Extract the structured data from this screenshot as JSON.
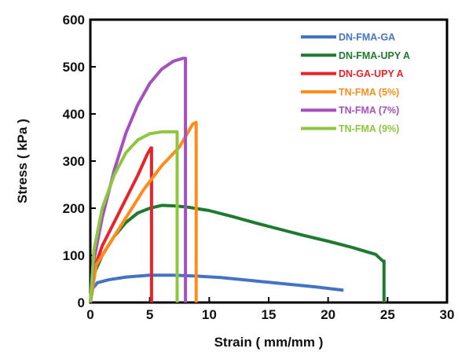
{
  "chart_data": {
    "type": "line",
    "title": "",
    "xlabel": "Strain ( mm/mm )",
    "ylabel": "Stress ( kPa )",
    "xlim": [
      0,
      30
    ],
    "ylim": [
      0,
      600
    ],
    "xticks": [
      0,
      5,
      10,
      15,
      20,
      25,
      30
    ],
    "yticks": [
      0,
      100,
      200,
      300,
      400,
      500,
      600
    ],
    "legend_position": "top-right",
    "grid": false,
    "series": [
      {
        "name": "DN-FMA-GA",
        "color": "#4472c4",
        "points": [
          [
            0,
            0
          ],
          [
            0.2,
            30
          ],
          [
            0.6,
            42
          ],
          [
            1.5,
            48
          ],
          [
            3,
            54
          ],
          [
            5,
            58
          ],
          [
            7,
            58
          ],
          [
            9,
            56
          ],
          [
            11,
            53
          ],
          [
            13,
            48
          ],
          [
            15,
            43
          ],
          [
            17,
            38
          ],
          [
            19,
            33
          ],
          [
            21.3,
            26
          ]
        ]
      },
      {
        "name": "DN-FMA-UPY A",
        "color": "#1e7b2e",
        "points": [
          [
            0,
            0
          ],
          [
            0.3,
            60
          ],
          [
            1,
            100
          ],
          [
            2,
            140
          ],
          [
            3,
            170
          ],
          [
            4,
            190
          ],
          [
            5,
            200
          ],
          [
            6,
            206
          ],
          [
            7,
            205
          ],
          [
            8,
            203
          ],
          [
            10,
            195
          ],
          [
            12,
            182
          ],
          [
            14,
            168
          ],
          [
            16,
            155
          ],
          [
            18,
            142
          ],
          [
            20,
            130
          ],
          [
            22,
            117
          ],
          [
            24,
            102
          ],
          [
            24.6,
            88
          ],
          [
            24.7,
            88
          ],
          [
            24.7,
            0
          ]
        ]
      },
      {
        "name": "DN-GA-UPY A",
        "color": "#e8232a",
        "points": [
          [
            0,
            0
          ],
          [
            0.3,
            70
          ],
          [
            1,
            120
          ],
          [
            2,
            170
          ],
          [
            3,
            220
          ],
          [
            4,
            270
          ],
          [
            4.8,
            315
          ],
          [
            5.1,
            328
          ],
          [
            5.15,
            328
          ],
          [
            5.15,
            0
          ]
        ]
      },
      {
        "name": "TN-FMA (5%)",
        "color": "#ff8c1a",
        "points": [
          [
            0,
            0
          ],
          [
            0.5,
            80
          ],
          [
            1.5,
            120
          ],
          [
            3,
            180
          ],
          [
            4.5,
            240
          ],
          [
            6,
            290
          ],
          [
            7.5,
            330
          ],
          [
            8.6,
            378
          ],
          [
            8.9,
            382
          ],
          [
            8.9,
            0
          ]
        ]
      },
      {
        "name": "TN-FMA (7%)",
        "color": "#a64fbf",
        "points": [
          [
            0,
            0
          ],
          [
            0.3,
            90
          ],
          [
            1,
            180
          ],
          [
            2,
            280
          ],
          [
            3,
            360
          ],
          [
            4,
            420
          ],
          [
            5,
            465
          ],
          [
            6,
            495
          ],
          [
            7,
            512
          ],
          [
            7.8,
            518
          ],
          [
            8,
            518
          ],
          [
            8,
            0
          ]
        ]
      },
      {
        "name": "TN-FMA (9%)",
        "color": "#8dc63f",
        "points": [
          [
            0,
            0
          ],
          [
            0.3,
            110
          ],
          [
            1,
            200
          ],
          [
            2,
            270
          ],
          [
            3,
            318
          ],
          [
            4,
            345
          ],
          [
            5,
            358
          ],
          [
            6,
            362
          ],
          [
            7,
            362
          ],
          [
            7.3,
            362
          ],
          [
            7.3,
            0
          ]
        ]
      }
    ]
  }
}
